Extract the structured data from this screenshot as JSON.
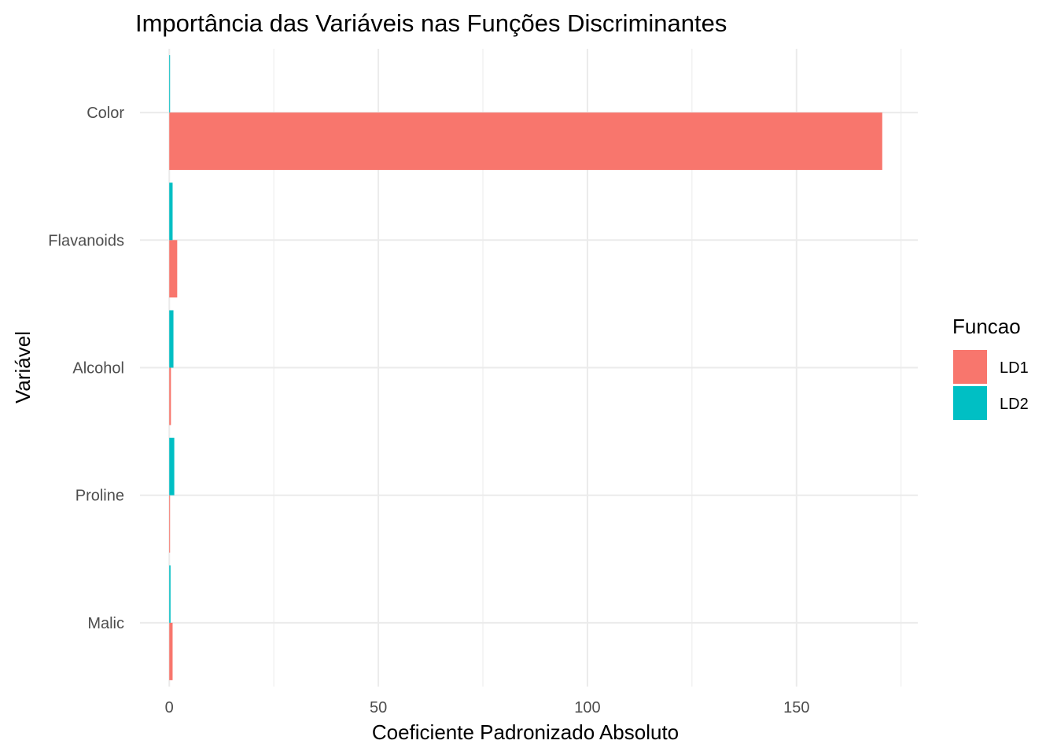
{
  "chart_data": {
    "type": "bar",
    "orientation": "horizontal",
    "title": "Importância das Variáveis nas Funções Discriminantes",
    "xlabel": "Coeficiente Padronizado Absoluto",
    "ylabel": "Variável",
    "categories": [
      "Color",
      "Flavanoids",
      "Alcohol",
      "Proline",
      "Malic"
    ],
    "series": [
      {
        "name": "LD1",
        "color": "#F8766D",
        "values": [
          170.5,
          1.9,
          0.4,
          0.15,
          0.8
        ]
      },
      {
        "name": "LD2",
        "color": "#00BFC4",
        "values": [
          0.1,
          0.8,
          1.0,
          1.2,
          0.3
        ]
      }
    ],
    "xlim": [
      -7,
      179
    ],
    "xticks": [
      0,
      50,
      100,
      150
    ],
    "xtick_labels": [
      "0",
      "50",
      "100",
      "150"
    ],
    "grid": true,
    "legend": {
      "title": "Funcao",
      "position": "right",
      "items": [
        "LD1",
        "LD2"
      ]
    }
  }
}
